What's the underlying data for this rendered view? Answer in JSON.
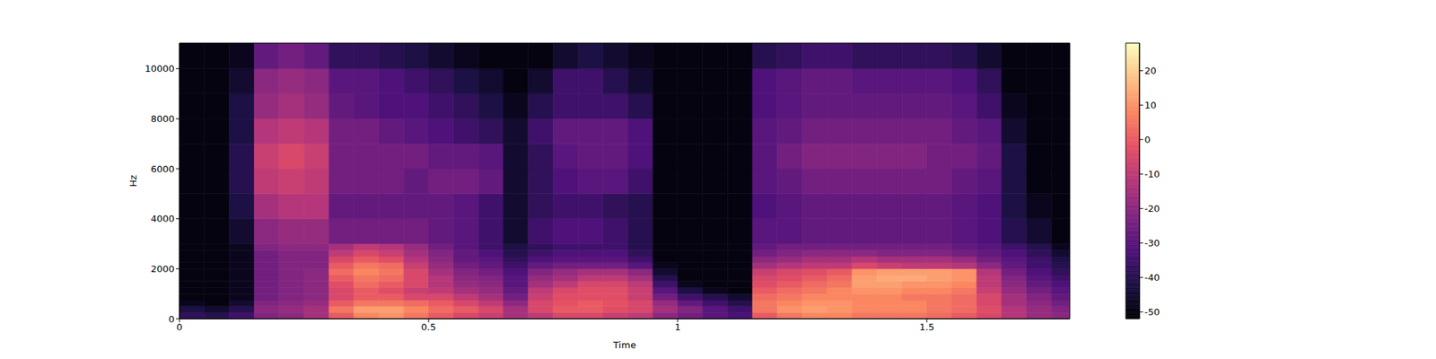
{
  "chart_data": {
    "type": "heatmap",
    "x_label": "Time",
    "y_label": "Hz",
    "xlim": [
      0,
      1.787
    ],
    "xticks": [
      0,
      0.5,
      1,
      1.5
    ],
    "ylim": [
      0,
      11025
    ],
    "yticks": [
      0,
      2000,
      4000,
      6000,
      8000,
      10000
    ],
    "x_edges": [
      0,
      0.05,
      0.1,
      0.15,
      0.2,
      0.25,
      0.3,
      0.35,
      0.4,
      0.45,
      0.5,
      0.55,
      0.6,
      0.65,
      0.7,
      0.75,
      0.8,
      0.85,
      0.9,
      0.95,
      1.0,
      1.05,
      1.1,
      1.15,
      1.2,
      1.25,
      1.3,
      1.35,
      1.4,
      1.45,
      1.5,
      1.55,
      1.6,
      1.65,
      1.7,
      1.75,
      1.8
    ],
    "y_edges": [
      0,
      250,
      500,
      750,
      1000,
      1250,
      1500,
      1750,
      2000,
      2250,
      2500,
      2750,
      3000,
      4000,
      5000,
      6000,
      7000,
      8000,
      9000,
      10000,
      11025
    ],
    "cells": [
      [
        -38,
        -40,
        -35,
        -22,
        -20,
        -15,
        0,
        8,
        10,
        5,
        0,
        -5,
        -8,
        -15,
        -10,
        -5,
        -5,
        -8,
        -10,
        -20,
        -25,
        -30,
        -33,
        0,
        5,
        8,
        8,
        5,
        5,
        5,
        3,
        0,
        -5,
        -12,
        -18,
        -20
      ],
      [
        -42,
        -45,
        -40,
        -20,
        -18,
        -15,
        5,
        12,
        12,
        8,
        3,
        0,
        -5,
        -15,
        -5,
        0,
        0,
        -3,
        -5,
        -15,
        -22,
        -30,
        -35,
        5,
        10,
        12,
        10,
        8,
        8,
        8,
        5,
        3,
        -3,
        -12,
        -18,
        -22
      ],
      [
        -48,
        -50,
        -45,
        -22,
        -20,
        -18,
        0,
        5,
        5,
        3,
        0,
        -5,
        -10,
        -20,
        -5,
        -2,
        0,
        -2,
        -5,
        -18,
        -28,
        -35,
        -40,
        5,
        8,
        10,
        10,
        8,
        8,
        8,
        5,
        3,
        -5,
        -15,
        -20,
        -25
      ],
      [
        -50,
        -50,
        -48,
        -25,
        -22,
        -20,
        -5,
        0,
        0,
        -5,
        -5,
        -10,
        -15,
        -25,
        -8,
        -3,
        -3,
        -3,
        -8,
        -25,
        -35,
        -40,
        -45,
        3,
        5,
        8,
        8,
        8,
        8,
        5,
        5,
        3,
        -5,
        -15,
        -22,
        -28
      ],
      [
        -50,
        -50,
        -48,
        -25,
        -22,
        -20,
        -5,
        0,
        -3,
        -8,
        -10,
        -15,
        -18,
        -28,
        -10,
        -5,
        -3,
        -3,
        -8,
        -30,
        -42,
        -48,
        -50,
        0,
        3,
        5,
        8,
        10,
        10,
        8,
        8,
        5,
        -8,
        -18,
        -25,
        -30
      ],
      [
        -50,
        -50,
        -48,
        -25,
        -22,
        -20,
        -3,
        3,
        0,
        -5,
        -12,
        -18,
        -20,
        -30,
        -15,
        -10,
        -5,
        -5,
        -10,
        -35,
        -48,
        -50,
        -50,
        -3,
        0,
        3,
        5,
        12,
        12,
        10,
        10,
        8,
        -10,
        -20,
        -28,
        -32
      ],
      [
        -50,
        -50,
        -48,
        -25,
        -22,
        -20,
        0,
        5,
        3,
        -5,
        -12,
        -20,
        -22,
        -30,
        -18,
        -15,
        -10,
        -10,
        -15,
        -40,
        -50,
        -50,
        -50,
        -5,
        -3,
        0,
        3,
        12,
        14,
        14,
        12,
        10,
        -10,
        -22,
        -30,
        -35
      ],
      [
        -50,
        -50,
        -48,
        -25,
        -22,
        -20,
        3,
        8,
        5,
        -5,
        -15,
        -22,
        -25,
        -32,
        -22,
        -18,
        -15,
        -15,
        -20,
        -45,
        -50,
        -50,
        -50,
        -8,
        -5,
        -3,
        0,
        10,
        12,
        12,
        12,
        10,
        -12,
        -25,
        -32,
        -38
      ],
      [
        -50,
        -50,
        -48,
        -25,
        -22,
        -22,
        0,
        5,
        3,
        -8,
        -18,
        -25,
        -28,
        -35,
        -28,
        -25,
        -25,
        -25,
        -30,
        -48,
        -50,
        -50,
        -50,
        -15,
        -12,
        -10,
        -10,
        -5,
        -8,
        -10,
        -10,
        -12,
        -20,
        -28,
        -35,
        -40
      ],
      [
        -50,
        -50,
        -48,
        -25,
        -22,
        -22,
        -5,
        0,
        -3,
        -12,
        -20,
        -28,
        -30,
        -38,
        -32,
        -30,
        -30,
        -30,
        -35,
        -50,
        -50,
        -50,
        -50,
        -20,
        -18,
        -15,
        -15,
        -12,
        -15,
        -15,
        -15,
        -18,
        -25,
        -30,
        -35,
        -42
      ],
      [
        -50,
        -50,
        -48,
        -25,
        -22,
        -22,
        -10,
        -5,
        -8,
        -15,
        -22,
        -28,
        -32,
        -40,
        -35,
        -32,
        -32,
        -32,
        -38,
        -50,
        -50,
        -50,
        -50,
        -25,
        -22,
        -20,
        -20,
        -20,
        -22,
        -22,
        -22,
        -25,
        -28,
        -32,
        -38,
        -45
      ],
      [
        -50,
        -50,
        -48,
        -22,
        -20,
        -20,
        -15,
        -10,
        -12,
        -18,
        -25,
        -30,
        -35,
        -42,
        -38,
        -35,
        -35,
        -35,
        -40,
        -50,
        -50,
        -50,
        -50,
        -28,
        -25,
        -25,
        -25,
        -25,
        -25,
        -25,
        -25,
        -28,
        -30,
        -35,
        -40,
        -48
      ],
      [
        -50,
        -50,
        -45,
        -20,
        -18,
        -18,
        -25,
        -25,
        -25,
        -25,
        -28,
        -30,
        -35,
        -45,
        -35,
        -32,
        -32,
        -35,
        -40,
        -50,
        -50,
        -50,
        -50,
        -30,
        -30,
        -28,
        -28,
        -28,
        -28,
        -28,
        -28,
        -30,
        -32,
        -40,
        -45,
        -50
      ],
      [
        -50,
        -50,
        -42,
        -15,
        -12,
        -12,
        -28,
        -28,
        -28,
        -28,
        -28,
        -30,
        -35,
        -45,
        -38,
        -35,
        -35,
        -38,
        -40,
        -50,
        -50,
        -50,
        -50,
        -32,
        -30,
        -28,
        -28,
        -28,
        -28,
        -28,
        -28,
        -30,
        -32,
        -42,
        -48,
        -50
      ],
      [
        -50,
        -50,
        -40,
        -10,
        -8,
        -10,
        -25,
        -25,
        -25,
        -28,
        -25,
        -25,
        -28,
        -45,
        -38,
        -32,
        -30,
        -30,
        -35,
        -50,
        -50,
        -50,
        -50,
        -30,
        -28,
        -25,
        -25,
        -25,
        -25,
        -25,
        -25,
        -28,
        -30,
        -42,
        -50,
        -50
      ],
      [
        -50,
        -50,
        -40,
        -8,
        -5,
        -8,
        -25,
        -25,
        -25,
        -25,
        -28,
        -28,
        -30,
        -45,
        -38,
        -30,
        -28,
        -28,
        -32,
        -50,
        -50,
        -50,
        -50,
        -30,
        -25,
        -22,
        -22,
        -22,
        -22,
        -22,
        -25,
        -25,
        -28,
        -42,
        -50,
        -50
      ],
      [
        -50,
        -50,
        -42,
        -12,
        -10,
        -12,
        -25,
        -25,
        -28,
        -30,
        -32,
        -35,
        -38,
        -45,
        -35,
        -28,
        -28,
        -28,
        -32,
        -50,
        -50,
        -50,
        -50,
        -30,
        -28,
        -25,
        -25,
        -25,
        -25,
        -25,
        -25,
        -28,
        -30,
        -45,
        -50,
        -50
      ],
      [
        -50,
        -50,
        -42,
        -18,
        -15,
        -18,
        -28,
        -30,
        -32,
        -32,
        -35,
        -38,
        -42,
        -48,
        -40,
        -35,
        -35,
        -35,
        -40,
        -50,
        -50,
        -50,
        -50,
        -32,
        -30,
        -28,
        -28,
        -28,
        -28,
        -28,
        -28,
        -30,
        -35,
        -48,
        -50,
        -50
      ],
      [
        -50,
        -50,
        -45,
        -20,
        -18,
        -20,
        -30,
        -30,
        -32,
        -35,
        -38,
        -42,
        -45,
        -50,
        -45,
        -35,
        -35,
        -40,
        -45,
        -50,
        -50,
        -50,
        -50,
        -32,
        -30,
        -28,
        -28,
        -30,
        -30,
        -30,
        -30,
        -32,
        -38,
        -50,
        -50,
        -50
      ],
      [
        -50,
        -50,
        -48,
        -28,
        -25,
        -28,
        -38,
        -38,
        -40,
        -42,
        -45,
        -48,
        -50,
        -50,
        -50,
        -45,
        -42,
        -45,
        -48,
        -50,
        -50,
        -50,
        -50,
        -40,
        -38,
        -35,
        -35,
        -38,
        -38,
        -38,
        -38,
        -40,
        -45,
        -50,
        -50,
        -50
      ]
    ],
    "colorbar": {
      "range": [
        -52,
        28
      ],
      "ticks": [
        -50,
        -40,
        -30,
        -20,
        -10,
        0,
        10,
        20
      ]
    }
  }
}
